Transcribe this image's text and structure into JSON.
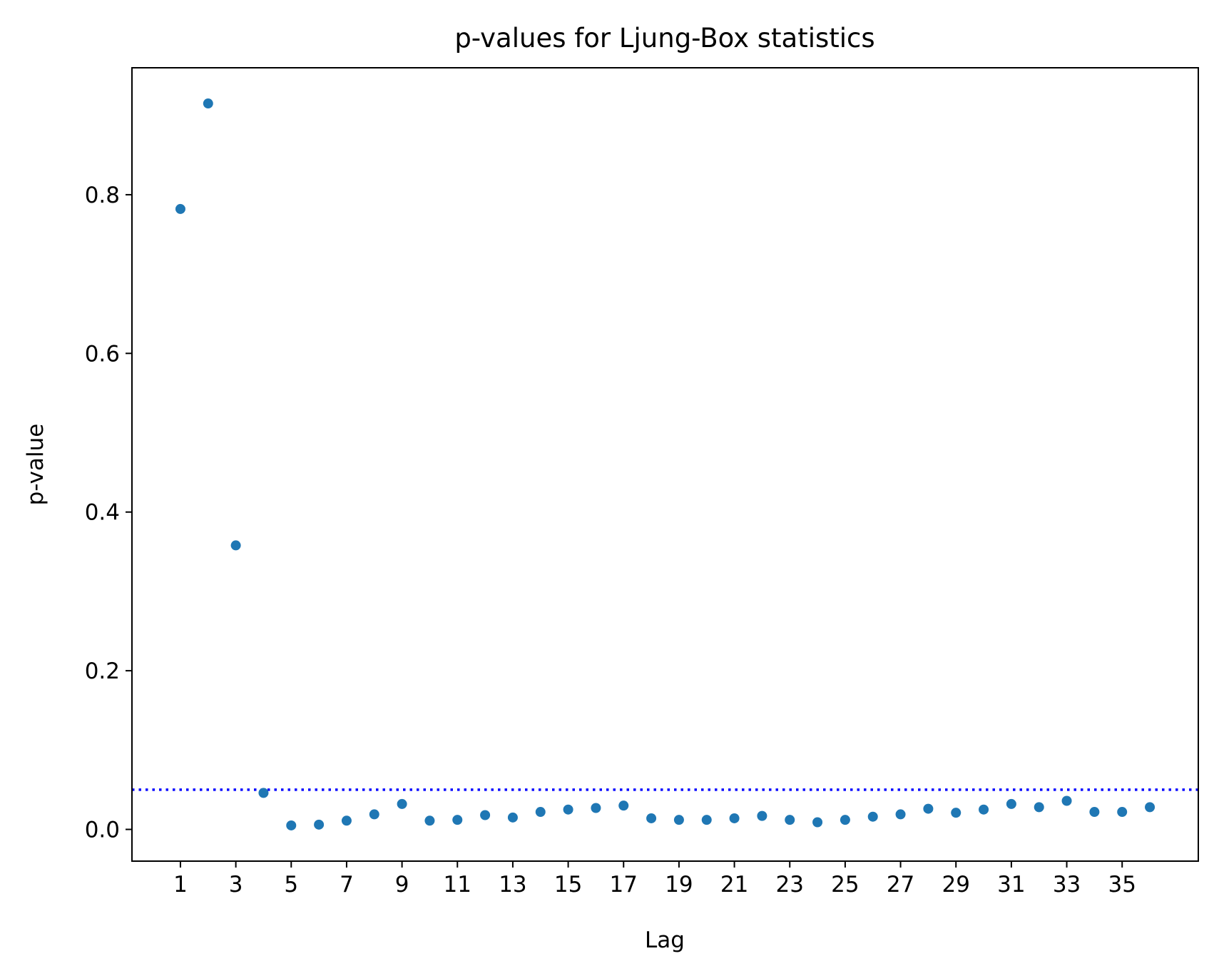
{
  "chart_data": {
    "type": "scatter",
    "title": "p-values for Ljung-Box statistics",
    "xlabel": "Lag",
    "ylabel": "p-value",
    "xlim": [
      -0.75,
      37.75
    ],
    "ylim": [
      -0.04,
      0.96
    ],
    "x_ticks": [
      1,
      3,
      5,
      7,
      9,
      11,
      13,
      15,
      17,
      19,
      21,
      23,
      25,
      27,
      29,
      31,
      33,
      35
    ],
    "y_ticks": [
      0.0,
      0.2,
      0.4,
      0.6,
      0.8
    ],
    "y_tick_labels": [
      "0.0",
      "0.2",
      "0.4",
      "0.6",
      "0.8"
    ],
    "grid": false,
    "reference_line": {
      "y": 0.05,
      "style": "dotted",
      "color": "#0000ff"
    },
    "marker_color": "#1f77b4",
    "series": [
      {
        "x": [
          1,
          2,
          3,
          4,
          5,
          6,
          7,
          8,
          9,
          10,
          11,
          12,
          13,
          14,
          15,
          16,
          17,
          18,
          19,
          20,
          21,
          22,
          23,
          24,
          25,
          26,
          27,
          28,
          29,
          30,
          31,
          32,
          33,
          34,
          35,
          36
        ],
        "y": [
          0.782,
          0.915,
          0.358,
          0.046,
          0.005,
          0.006,
          0.011,
          0.019,
          0.032,
          0.011,
          0.012,
          0.018,
          0.015,
          0.022,
          0.025,
          0.027,
          0.03,
          0.014,
          0.012,
          0.012,
          0.014,
          0.017,
          0.012,
          0.009,
          0.012,
          0.016,
          0.019,
          0.026,
          0.021,
          0.025,
          0.032,
          0.028,
          0.036,
          0.022,
          0.022,
          0.028
        ]
      }
    ]
  }
}
